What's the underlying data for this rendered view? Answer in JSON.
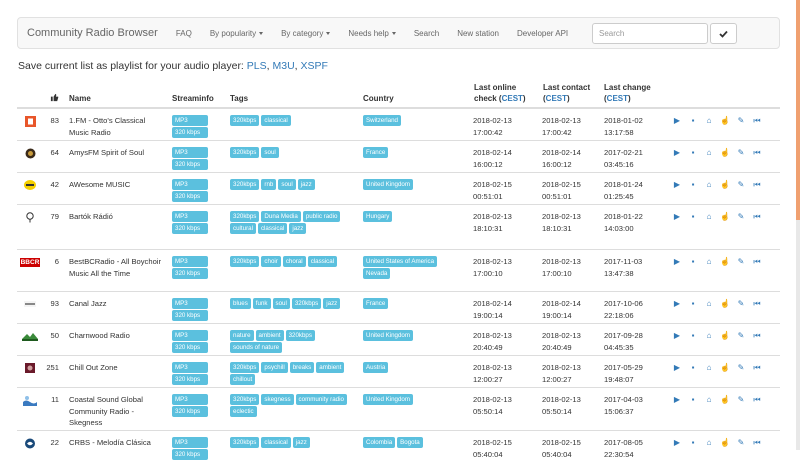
{
  "navbar": {
    "brand": "Community Radio Browser",
    "items": [
      "FAQ",
      "By popularity",
      "By category",
      "Needs help",
      "Search",
      "New station",
      "Developer API"
    ],
    "search_placeholder": "Search",
    "search_button_icon": "check-icon"
  },
  "playlist": {
    "prefix": "Save current list as playlist for your audio player:",
    "pls": "PLS",
    "m3u": "M3U",
    "xspf": "XSPF"
  },
  "table": {
    "headers": {
      "votes_icon": "thumbs-up-icon",
      "name": "Name",
      "streaminfo": "Streaminfo",
      "tags": "Tags",
      "country": "Country",
      "last_online_1": "Last online",
      "last_online_2": "check (",
      "last_contact_1": "Last contact",
      "last_contact_2": "(",
      "last_change_1": "Last change",
      "last_change_2": "(",
      "tz": "CEST",
      "close_paren": ")"
    },
    "rows": [
      {
        "logo": "fm-logo",
        "votes": "83",
        "name": "1.FM - Otto's Classical Music Radio",
        "stream": [
          "MP3",
          "320 kbps"
        ],
        "tags": [
          "320kbps",
          "classical"
        ],
        "country": [
          "Switzerland"
        ],
        "online": [
          "2018-02-13",
          "17:00:42"
        ],
        "contact": [
          "2018-02-13",
          "17:00:42"
        ],
        "change": [
          "2018-01-02",
          "13:17:58"
        ]
      },
      {
        "logo": "amys-logo",
        "votes": "64",
        "name": "AmysFM Spirit of Soul",
        "stream": [
          "MP3",
          "320 kbps"
        ],
        "tags": [
          "320kbps",
          "soul"
        ],
        "country": [
          "France"
        ],
        "online": [
          "2018-02-14",
          "16:00:12"
        ],
        "contact": [
          "2018-02-14",
          "16:00:12"
        ],
        "change": [
          "2017-02-21",
          "03:45:16"
        ]
      },
      {
        "logo": "awesome-logo",
        "votes": "42",
        "name": "AWesome MUSIC",
        "stream": [
          "MP3",
          "320 kbps"
        ],
        "tags": [
          "320kbps",
          "rnb",
          "soul",
          "jazz"
        ],
        "country": [
          "United Kingdom"
        ],
        "online": [
          "2018-02-15",
          "00:51:01"
        ],
        "contact": [
          "2018-02-15",
          "00:51:01"
        ],
        "change": [
          "2018-01-24",
          "01:25:45"
        ]
      },
      {
        "logo": "bartok-logo",
        "votes": "79",
        "name": "Bartók Rádió",
        "stream": [
          "MP3",
          "320 kbps"
        ],
        "tags": [
          "320kbps",
          "Duna Media",
          "public radio",
          "cultural",
          "classical",
          "jazz"
        ],
        "country": [
          "Hungary"
        ],
        "online": [
          "2018-02-13",
          "18:10:31"
        ],
        "contact": [
          "2018-02-13",
          "18:10:31"
        ],
        "change": [
          "2018-01-22",
          "14:03:00"
        ]
      },
      {
        "logo": "bbcr-logo",
        "logo_text": "BBCR",
        "votes": "6",
        "name": "BestBCRadio - All Boychoir Music All the Time",
        "stream": [
          "MP3",
          "320 kbps"
        ],
        "tags": [
          "320kbps",
          "choir",
          "choral",
          "classical"
        ],
        "country": [
          "United States of America",
          "Nevada"
        ],
        "online": [
          "2018-02-13",
          "17:00:10"
        ],
        "contact": [
          "2018-02-13",
          "17:00:10"
        ],
        "change": [
          "2017-11-03",
          "13:47:38"
        ]
      },
      {
        "logo": "canal-jazz-logo",
        "votes": "93",
        "name": "Canal Jazz",
        "stream": [
          "MP3",
          "320 kbps"
        ],
        "tags": [
          "blues",
          "funk",
          "soul",
          "320kbps",
          "jazz"
        ],
        "country": [
          "France"
        ],
        "online": [
          "2018-02-14",
          "19:00:14"
        ],
        "contact": [
          "2018-02-14",
          "19:00:14"
        ],
        "change": [
          "2017-10-06",
          "22:18:06"
        ]
      },
      {
        "logo": "charnwood-logo",
        "votes": "50",
        "name": "Charnwood Radio",
        "stream": [
          "MP3",
          "320 kbps"
        ],
        "tags": [
          "nature",
          "ambient",
          "320kbps",
          "sounds of nature"
        ],
        "country": [
          "United Kingdom"
        ],
        "online": [
          "2018-02-13",
          "20:40:49"
        ],
        "contact": [
          "2018-02-13",
          "20:40:49"
        ],
        "change": [
          "2017-09-28",
          "04:45:35"
        ]
      },
      {
        "logo": "chillout-logo",
        "votes": "251",
        "name": "Chill Out Zone",
        "stream": [
          "MP3",
          "320 kbps"
        ],
        "tags": [
          "320kbps",
          "psychill",
          "breaks",
          "ambient",
          "chillout"
        ],
        "country": [
          "Austria"
        ],
        "online": [
          "2018-02-13",
          "12:00:27"
        ],
        "contact": [
          "2018-02-13",
          "12:00:27"
        ],
        "change": [
          "2017-05-29",
          "19:48:07"
        ]
      },
      {
        "logo": "coastal-logo",
        "votes": "11",
        "name": "Coastal Sound Global Community Radio - Skegness",
        "stream": [
          "MP3",
          "320 kbps"
        ],
        "tags": [
          "320kbps",
          "skegness",
          "community radio",
          "eclectic"
        ],
        "country": [
          "United Kingdom"
        ],
        "online": [
          "2018-02-13",
          "05:50:14"
        ],
        "contact": [
          "2018-02-13",
          "05:50:14"
        ],
        "change": [
          "2017-04-03",
          "15:06:37"
        ]
      },
      {
        "logo": "crbs-logo",
        "votes": "22",
        "name": "CRBS - Melodía Clásica",
        "stream": [
          "MP3",
          "320 kbps"
        ],
        "tags": [
          "320kbps",
          "classical",
          "jazz"
        ],
        "country": [
          "Colombia",
          "Bogota"
        ],
        "online": [
          "2018-02-15",
          "05:40:04"
        ],
        "contact": [
          "2018-02-15",
          "05:40:04"
        ],
        "change": [
          "2017-08-05",
          "22:30:54"
        ]
      }
    ],
    "actions": [
      {
        "name": "play-icon",
        "glyph": "▶"
      },
      {
        "name": "save-icon",
        "glyph": "▪"
      },
      {
        "name": "home-icon",
        "glyph": "⌂"
      },
      {
        "name": "vote-icon",
        "glyph": "☝"
      },
      {
        "name": "edit-icon",
        "glyph": "✎"
      },
      {
        "name": "history-icon",
        "glyph": "⏮"
      }
    ]
  },
  "colors": {
    "label": "#5bc0de",
    "link": "#337ab7",
    "navbar_bg": "#f8f8f8"
  }
}
